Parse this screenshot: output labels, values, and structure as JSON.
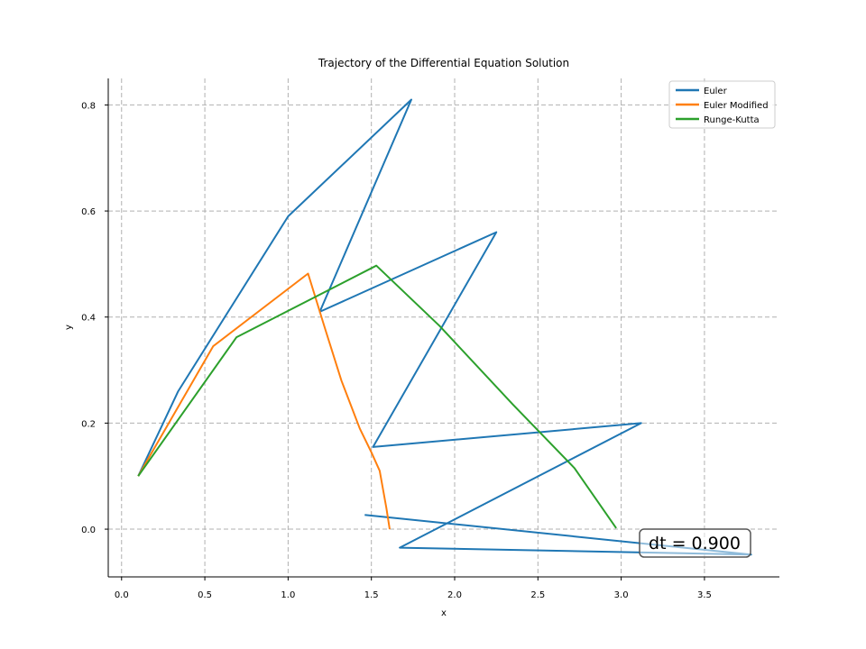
{
  "chart_data": {
    "type": "line",
    "title": "Trajectory of the Differential Equation Solution",
    "xlabel": "x",
    "ylabel": "y",
    "xlim": [
      -0.08,
      3.95
    ],
    "ylim": [
      -0.09,
      0.85
    ],
    "xticks": [
      0.0,
      0.5,
      1.0,
      1.5,
      2.0,
      2.5,
      3.0,
      3.5
    ],
    "xtick_labels": [
      "0.0",
      "0.5",
      "1.0",
      "1.5",
      "2.0",
      "2.5",
      "3.0",
      "3.5"
    ],
    "yticks": [
      0.0,
      0.2,
      0.4,
      0.6,
      0.8
    ],
    "ytick_labels": [
      "0.0",
      "0.2",
      "0.4",
      "0.6",
      "0.8"
    ],
    "grid": true,
    "legend_position": "top-right",
    "series": [
      {
        "name": "Euler",
        "color": "#1f77b4",
        "points": [
          [
            0.1,
            0.1
          ],
          [
            0.34,
            0.26
          ],
          [
            1.0,
            0.59
          ],
          [
            1.74,
            0.81
          ],
          [
            1.19,
            0.41
          ],
          [
            2.25,
            0.56
          ],
          [
            1.51,
            0.155
          ],
          [
            3.12,
            0.2
          ],
          [
            1.67,
            -0.035
          ],
          [
            3.78,
            -0.048
          ],
          [
            1.46,
            0.027
          ]
        ]
      },
      {
        "name": "Euler Modified",
        "color": "#ff7f0e",
        "points": [
          [
            0.1,
            0.1
          ],
          [
            0.55,
            0.345
          ],
          [
            1.12,
            0.482
          ],
          [
            1.22,
            0.38
          ],
          [
            1.32,
            0.28
          ],
          [
            1.43,
            0.19
          ],
          [
            1.5,
            0.145
          ],
          [
            1.55,
            0.11
          ],
          [
            1.59,
            0.04
          ],
          [
            1.61,
            0.0
          ]
        ]
      },
      {
        "name": "Runge-Kutta",
        "color": "#2ca02c",
        "points": [
          [
            0.1,
            0.1
          ],
          [
            0.69,
            0.362
          ],
          [
            1.53,
            0.497
          ],
          [
            1.91,
            0.383
          ],
          [
            2.35,
            0.235
          ],
          [
            2.72,
            0.115
          ],
          [
            2.97,
            0.002
          ]
        ]
      }
    ],
    "annotation": {
      "text": "dt = 0.900",
      "x": 3.45,
      "y": -0.027
    }
  }
}
